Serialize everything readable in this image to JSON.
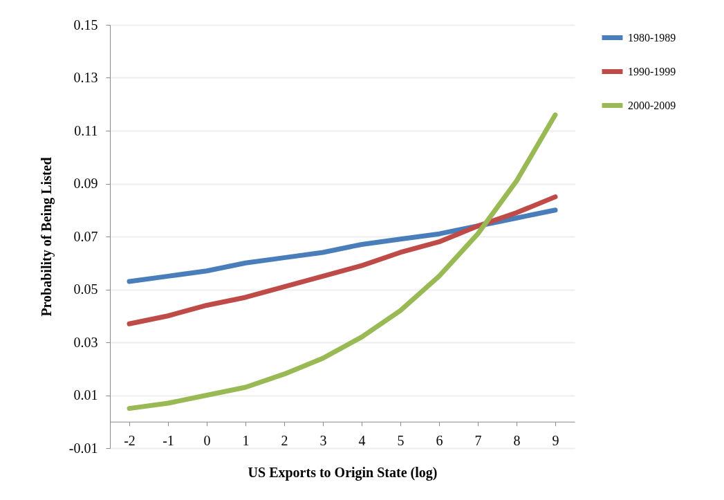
{
  "chart_data": {
    "type": "line",
    "xlabel": "US Exports to Origin State (log)",
    "ylabel": "Probability of Being Listed",
    "categories": [
      "-2",
      "-1",
      "0",
      "1",
      "2",
      "3",
      "4",
      "5",
      "6",
      "7",
      "8",
      "9"
    ],
    "series": [
      {
        "name": "1980-1989",
        "color": "#4a7ebb",
        "values": [
          0.053,
          0.055,
          0.057,
          0.06,
          0.062,
          0.064,
          0.067,
          0.069,
          0.071,
          0.074,
          0.077,
          0.08
        ]
      },
      {
        "name": "1990-1999",
        "color": "#be4b48",
        "values": [
          0.037,
          0.04,
          0.044,
          0.047,
          0.051,
          0.055,
          0.059,
          0.064,
          0.068,
          0.074,
          0.079,
          0.085
        ]
      },
      {
        "name": "2000-2009",
        "color": "#98b954",
        "values": [
          0.005,
          0.007,
          0.01,
          0.013,
          0.018,
          0.024,
          0.032,
          0.042,
          0.055,
          0.071,
          0.091,
          0.116
        ]
      }
    ],
    "ylim": [
      -0.01,
      0.15
    ],
    "yticks": [
      -0.01,
      0.01,
      0.03,
      0.05,
      0.07,
      0.09,
      0.11,
      0.13,
      0.15
    ],
    "grid": "y",
    "legend": "right",
    "marker": "none",
    "line_style": "solid"
  }
}
